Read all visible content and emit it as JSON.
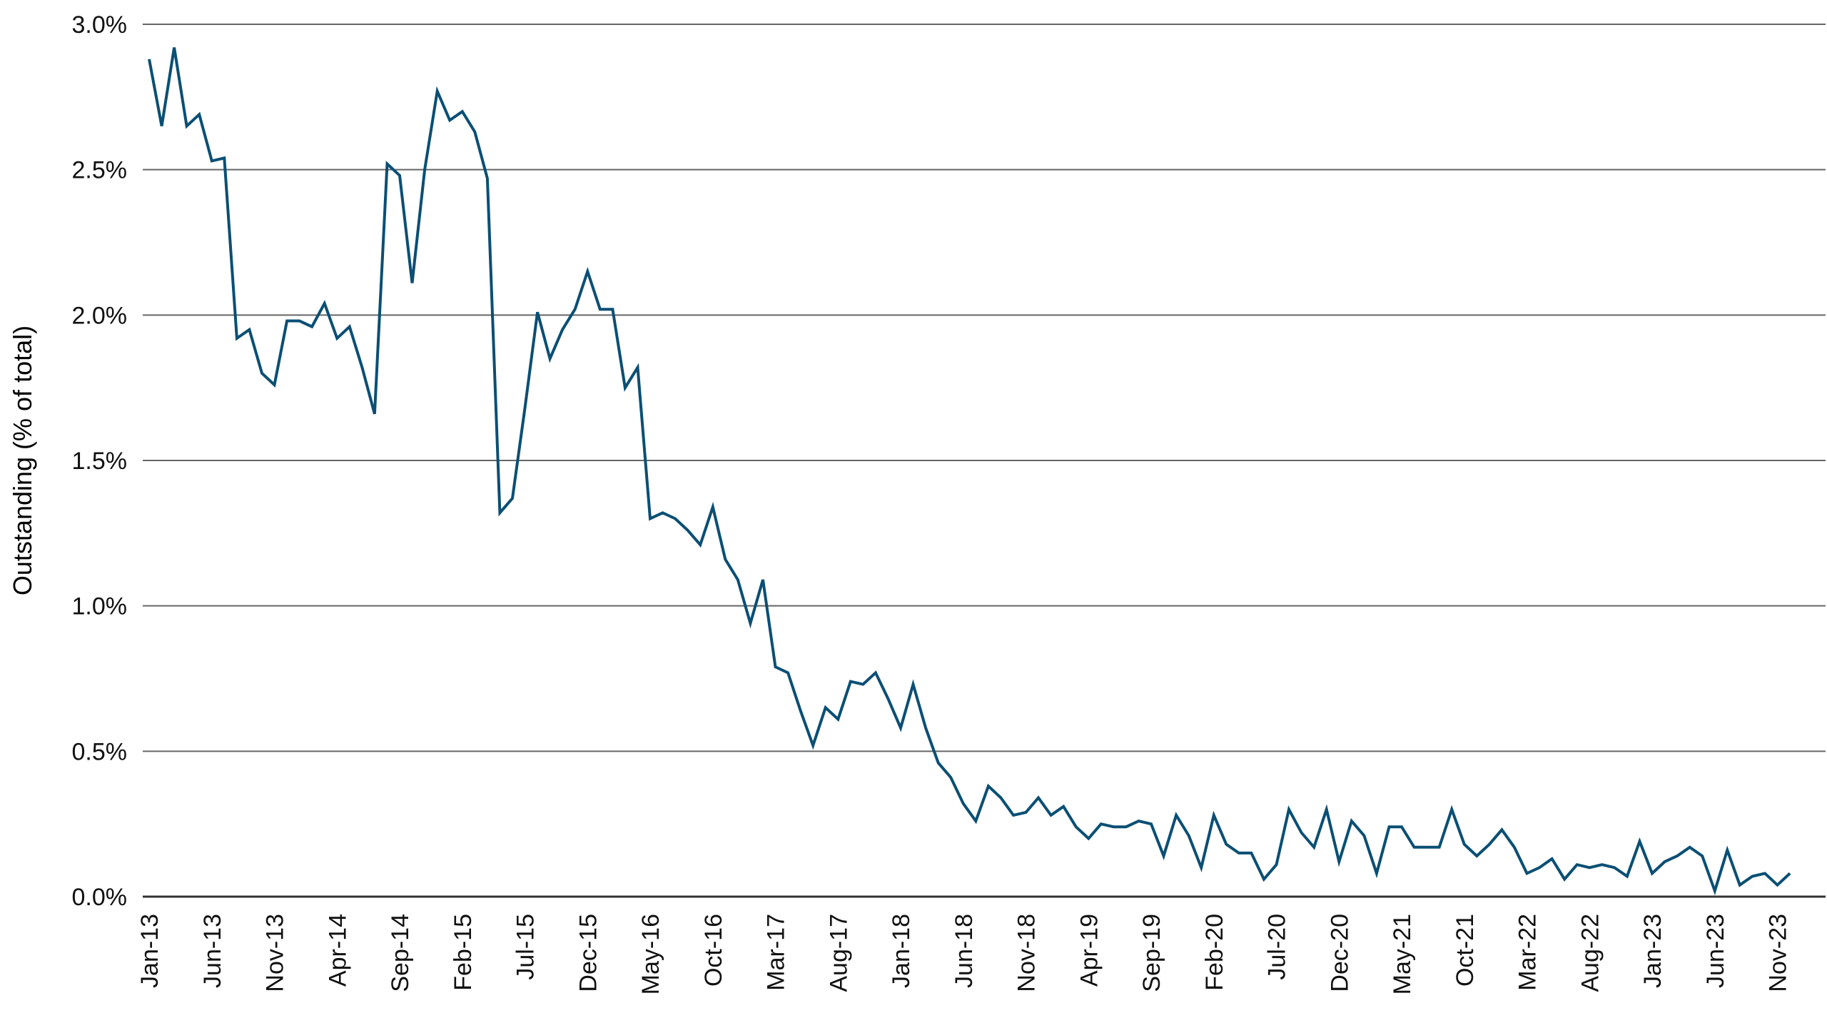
{
  "chart_data": {
    "type": "line",
    "title": "",
    "xlabel": "",
    "ylabel": "Outstanding (% of total)",
    "ylim": [
      0,
      3.0
    ],
    "yticks": [
      0,
      0.5,
      1.0,
      1.5,
      2.0,
      2.5,
      3.0
    ],
    "ytick_labels": [
      "0.0%",
      "0.5%",
      "1.0%",
      "1.5%",
      "2.0%",
      "2.5%",
      "3.0%"
    ],
    "grid": "horizontal",
    "x_start": "Jan-13",
    "x_frequency": "monthly",
    "xtick_every_months": 5,
    "xtick_labels": [
      "Jan-13",
      "Jun-13",
      "Nov-13",
      "Apr-14",
      "Sep-14",
      "Feb-15",
      "Jul-15",
      "Dec-15",
      "May-16",
      "Oct-16",
      "Mar-17",
      "Aug-17",
      "Jan-18",
      "Jun-18",
      "Nov-18",
      "Apr-19",
      "Sep-19",
      "Feb-20",
      "Jul-20",
      "Dec-20",
      "May-21",
      "Oct-21",
      "Mar-22",
      "Aug-22",
      "Jan-23",
      "Jun-23",
      "Nov-23"
    ],
    "line_color": "#0b4f74",
    "values": [
      2.88,
      2.65,
      2.92,
      2.65,
      2.69,
      2.53,
      2.54,
      1.92,
      1.95,
      1.8,
      1.76,
      1.98,
      1.98,
      1.96,
      2.04,
      1.92,
      1.96,
      1.82,
      1.66,
      2.52,
      2.48,
      2.11,
      2.5,
      2.77,
      2.67,
      2.7,
      2.63,
      2.47,
      1.32,
      1.37,
      1.68,
      2.01,
      1.85,
      1.95,
      2.02,
      2.15,
      2.02,
      2.02,
      1.75,
      1.82,
      1.3,
      1.32,
      1.3,
      1.26,
      1.21,
      1.34,
      1.16,
      1.09,
      0.94,
      1.09,
      0.79,
      0.77,
      0.64,
      0.52,
      0.65,
      0.61,
      0.74,
      0.73,
      0.77,
      0.68,
      0.58,
      0.73,
      0.58,
      0.46,
      0.41,
      0.32,
      0.26,
      0.38,
      0.34,
      0.28,
      0.29,
      0.34,
      0.28,
      0.31,
      0.24,
      0.2,
      0.25,
      0.24,
      0.24,
      0.26,
      0.25,
      0.14,
      0.28,
      0.21,
      0.1,
      0.28,
      0.18,
      0.15,
      0.15,
      0.06,
      0.11,
      0.3,
      0.22,
      0.17,
      0.3,
      0.12,
      0.26,
      0.21,
      0.08,
      0.24,
      0.24,
      0.17,
      0.17,
      0.17,
      0.3,
      0.18,
      0.14,
      0.18,
      0.23,
      0.17,
      0.08,
      0.1,
      0.13,
      0.06,
      0.11,
      0.1,
      0.11,
      0.1,
      0.07,
      0.19,
      0.08,
      0.12,
      0.14,
      0.17,
      0.14,
      0.02,
      0.16,
      0.04,
      0.07,
      0.08,
      0.04,
      0.08
    ]
  }
}
